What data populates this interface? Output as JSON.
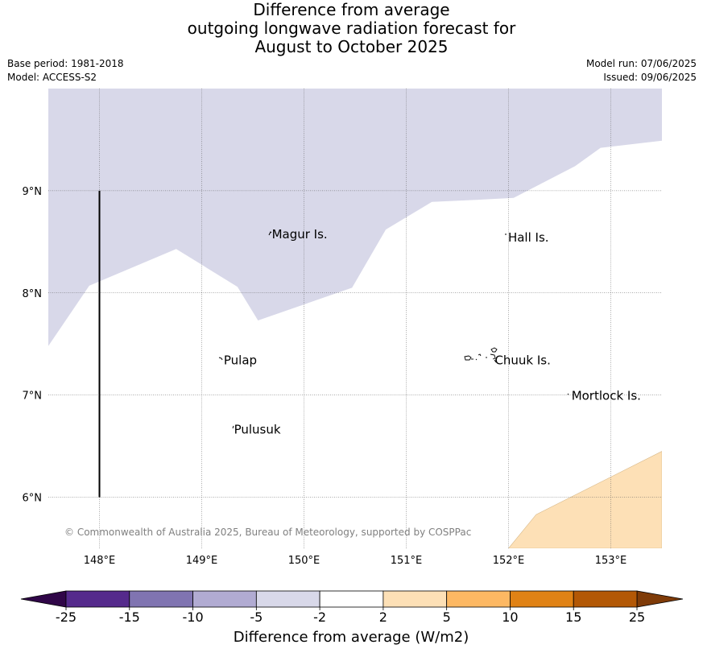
{
  "header": {
    "title_lines": [
      "Difference from average",
      "outgoing longwave radiation forecast for",
      "August to October 2025"
    ],
    "base_period": "Base period: 1981-2018",
    "model": "Model: ACCESS-S2",
    "model_run": "Model run: 07/06/2025",
    "issued": "Issued: 09/06/2025"
  },
  "map": {
    "lon_range": [
      147.5,
      153.5
    ],
    "lat_range": [
      5.5,
      10.0
    ],
    "lon_ticks": [
      {
        "value": 148,
        "label": "148°E"
      },
      {
        "value": 149,
        "label": "149°E"
      },
      {
        "value": 150,
        "label": "150°E"
      },
      {
        "value": 151,
        "label": "151°E"
      },
      {
        "value": 152,
        "label": "152°E"
      },
      {
        "value": 153,
        "label": "153°E"
      }
    ],
    "lat_ticks": [
      {
        "value": 9,
        "label": "9°N"
      },
      {
        "value": 8,
        "label": "8°N"
      },
      {
        "value": 7,
        "label": "7°N"
      },
      {
        "value": 6,
        "label": "6°N"
      }
    ],
    "gridlines": true,
    "places": [
      {
        "name": "Magur Is.",
        "lon": 149.67,
        "lat": 8.58
      },
      {
        "name": "Hall Is.",
        "lon": 151.98,
        "lat": 8.55
      },
      {
        "name": "Pulap",
        "lon": 149.2,
        "lat": 7.35
      },
      {
        "name": "Chuuk Is.",
        "lon": 151.85,
        "lat": 7.35
      },
      {
        "name": "Mortlock Is.",
        "lon": 152.6,
        "lat": 7.0
      },
      {
        "name": "Pulusuk",
        "lon": 149.3,
        "lat": 6.67
      }
    ],
    "boundary_line": {
      "lon": 148.0,
      "lat_from": 6.0,
      "lat_to": 9.0
    },
    "regions": [
      {
        "category": "-5 to -2",
        "color": "#d8d8e9",
        "outline": [
          [
            147.5,
            10.0
          ],
          [
            153.5,
            10.0
          ],
          [
            153.5,
            9.49
          ],
          [
            152.9,
            9.42
          ],
          [
            152.65,
            9.24
          ],
          [
            152.05,
            8.93
          ],
          [
            151.68,
            8.91
          ],
          [
            151.25,
            8.89
          ],
          [
            150.8,
            8.62
          ],
          [
            150.47,
            8.05
          ],
          [
            149.55,
            7.73
          ],
          [
            149.35,
            8.06
          ],
          [
            148.75,
            8.43
          ],
          [
            147.9,
            8.07
          ],
          [
            147.5,
            7.48
          ]
        ]
      },
      {
        "category": "2 to 5",
        "color": "#fde0b6",
        "outline": [
          [
            153.5,
            5.5
          ],
          [
            152.0,
            5.5
          ],
          [
            152.27,
            5.83
          ],
          [
            153.5,
            6.45
          ]
        ]
      }
    ],
    "copyright": "© Commonwealth of Australia 2025, Bureau of Meteorology, supported by COSPPac"
  },
  "colorbar": {
    "title": "Difference from average (W/m2)",
    "boundaries": [
      "-25",
      "-15",
      "-10",
      "-5",
      "-2",
      "2",
      "5",
      "10",
      "15",
      "25"
    ],
    "colors": [
      "#552a8c",
      "#8074b1",
      "#b1abd2",
      "#d8d8e9",
      "#ffffff",
      "#fde0b6",
      "#fdb863",
      "#e08215",
      "#b35806"
    ],
    "under_color": "#300648",
    "over_color": "#7f3b08"
  }
}
